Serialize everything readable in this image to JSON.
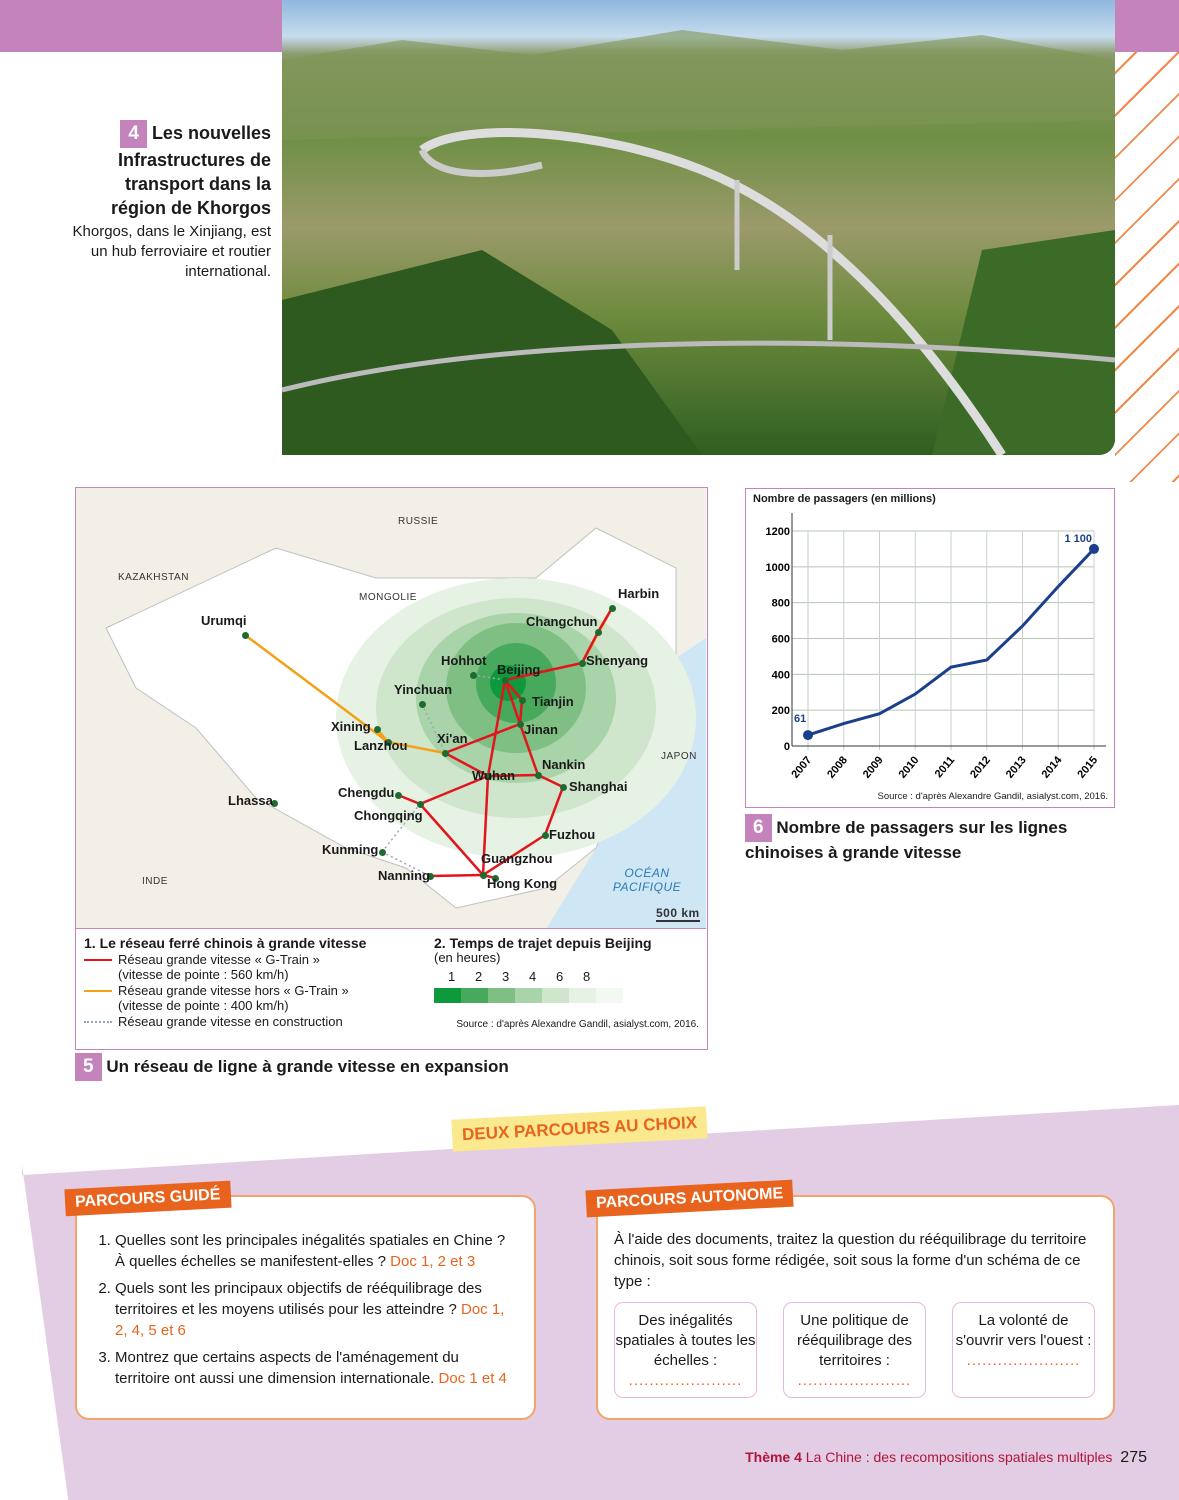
{
  "doc4": {
    "number": "4",
    "title": "Les nouvelles Infrastructures de transport dans la région de Khorgos",
    "subtitle": "Khorgos, dans le Xinjiang, est un hub ferroviaire et routier international."
  },
  "doc5": {
    "number": "5",
    "title": "Un réseau de ligne à grande vitesse en expansion",
    "countries": [
      "RUSSIE",
      "KAZAKHSTAN",
      "MONGOLIE",
      "INDE",
      "JAPON"
    ],
    "ocean": "OCÉAN PACIFIQUE",
    "scale": "500 km",
    "cities": [
      "Harbin",
      "Changchun",
      "Shenyang",
      "Beijing",
      "Tianjin",
      "Hohhot",
      "Yinchuan",
      "Xining",
      "Lanzhou",
      "Xi'an",
      "Jinan",
      "Nankin",
      "Shanghai",
      "Wuhan",
      "Chengdu",
      "Chongqing",
      "Fuzhou",
      "Kunming",
      "Guangzhou",
      "Nanning",
      "Hong Kong",
      "Urumqi",
      "Lhassa"
    ],
    "legend1": {
      "title": "1. Le réseau ferré chinois à grande vitesse",
      "items": [
        {
          "label": "Réseau grande vitesse « G-Train »",
          "detail": "(vitesse de pointe : 560 km/h)",
          "color": "#e3151c",
          "style": "solid"
        },
        {
          "label": "Réseau grande vitesse hors « G-Train »",
          "detail": "(vitesse de pointe : 400 km/h)",
          "color": "#f4a11a",
          "style": "solid"
        },
        {
          "label": "Réseau grande vitesse en construction",
          "detail": "",
          "color": "#9aa7b8",
          "style": "dotted"
        }
      ]
    },
    "legend2": {
      "title": "2. Temps de trajet depuis Beijing",
      "unit": "(en heures)",
      "steps": [
        "1",
        "2",
        "3",
        "4",
        "6",
        "8"
      ],
      "colors": [
        "#0e9a3c",
        "#47a95c",
        "#7fbf83",
        "#a9d3a8",
        "#cfe6cd",
        "#e6f2e4",
        "#f3f8f2"
      ]
    },
    "source": "Source : d'après Alexandre Gandil, asialyst.com, 2016."
  },
  "doc6": {
    "number": "6",
    "title": "Nombre de passagers sur les lignes chinoises à grande vitesse"
  },
  "chart_data": {
    "type": "line",
    "ylabel": "Nombre de passagers (en millions)",
    "categories": [
      "2007",
      "2008",
      "2009",
      "2010",
      "2011",
      "2012",
      "2013",
      "2014",
      "2015"
    ],
    "values": [
      61,
      125,
      180,
      290,
      440,
      480,
      670,
      890,
      1100
    ],
    "ylim": [
      0,
      1200
    ],
    "yticks": [
      "0",
      "200",
      "400",
      "600",
      "800",
      "1000",
      "1200"
    ],
    "data_labels": {
      "first": "61",
      "last": "1 100"
    },
    "color": "#1b3f8b",
    "grid": true,
    "source": "Source : d'après Alexandre Gandil, asialyst.com, 2016."
  },
  "choix": "DEUX PARCOURS AU CHOIX",
  "guide": {
    "label": "PARCOURS GUIDÉ",
    "questions": [
      {
        "text": "Quelles sont les principales inégalités spatiales en Chine ? À quelles échelles se manifestent-elles ?",
        "doc": "Doc 1, 2 et 3"
      },
      {
        "text": "Quels sont les principaux objectifs de rééquilibrage des territoires et les moyens utilisés pour les atteindre ?",
        "doc": "Doc 1, 2, 4, 5 et 6"
      },
      {
        "text": "Montrez que certains aspects de l'aménagement du territoire ont aussi une dimension internationale.",
        "doc": "Doc 1 et 4"
      }
    ]
  },
  "autonome": {
    "label": "PARCOURS AUTONOME",
    "intro": "À l'aide des documents, traitez la question du rééquilibrage du territoire chinois, soit sous forme rédigée, soit sous la forme d'un schéma de ce type :",
    "boxes": [
      "Des inégalités spatiales à toutes les échelles :",
      "Une politique de rééquilibrage des territoires :",
      "La volonté de s'ouvrir vers l'ouest :"
    ],
    "blank": "......................"
  },
  "footer": {
    "theme": "Thème 4",
    "title": "La Chine : des recompositions spatiales multiples",
    "page": "275"
  }
}
